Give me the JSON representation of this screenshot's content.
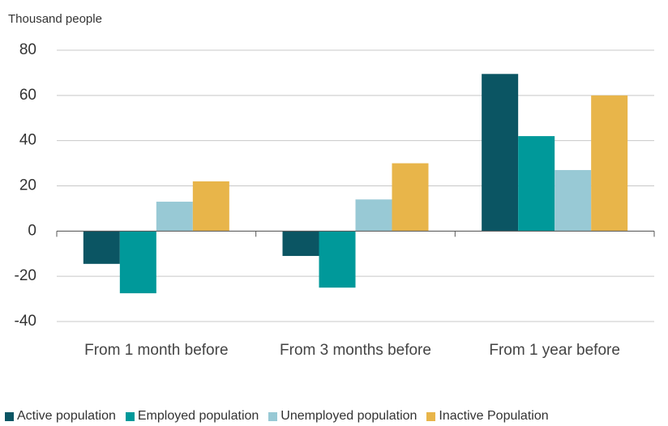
{
  "chart_data": {
    "type": "bar",
    "y_axis_label": "Thousand people",
    "categories": [
      "From 1 month before",
      "From 3 months before",
      "From 1 year before"
    ],
    "series": [
      {
        "name": "Active population",
        "color": "#0b5563",
        "values": [
          -14.5,
          -11,
          69.5
        ]
      },
      {
        "name": "Employed population",
        "color": "#00999a",
        "values": [
          -27.5,
          -25,
          42
        ]
      },
      {
        "name": "Unemployed population",
        "color": "#98c9d5",
        "values": [
          13,
          14,
          27
        ]
      },
      {
        "name": "Inactive Population",
        "color": "#e8b54a",
        "values": [
          22,
          30,
          60
        ]
      }
    ],
    "ylim": [
      -40,
      80
    ],
    "yticks": [
      -40,
      -20,
      0,
      20,
      40,
      60,
      80
    ],
    "grid": true
  }
}
